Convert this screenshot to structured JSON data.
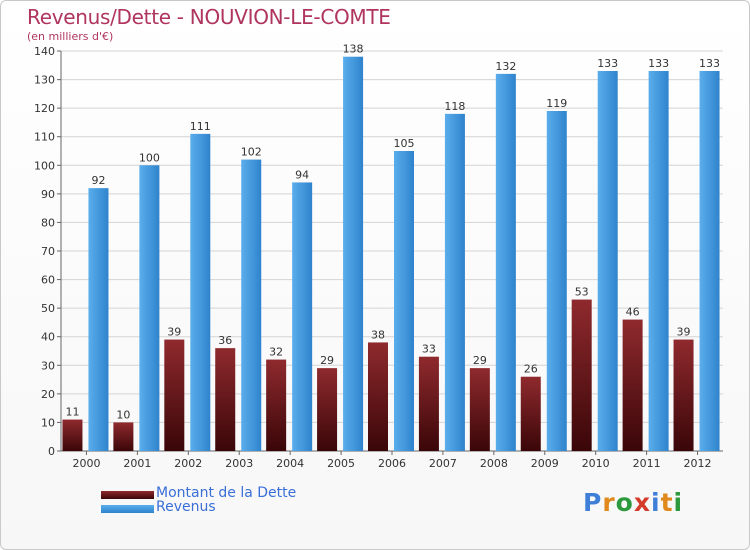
{
  "chart_data": {
    "type": "bar",
    "title": "Revenus/Dette - NOUVION-LE-COMTE",
    "subtitle": "(en milliers d'€)",
    "categories": [
      "2000",
      "2001",
      "2002",
      "2003",
      "2004",
      "2005",
      "2006",
      "2007",
      "2008",
      "2009",
      "2010",
      "2011",
      "2012"
    ],
    "series": [
      {
        "name": "Montant de la Dette",
        "color": "#7a1a1e",
        "values": [
          11,
          10,
          39,
          36,
          32,
          29,
          38,
          33,
          29,
          26,
          53,
          46,
          39
        ]
      },
      {
        "name": "Revenus",
        "color": "#4a9ee0",
        "values": [
          92,
          100,
          111,
          102,
          94,
          138,
          105,
          118,
          132,
          119,
          133,
          133,
          133
        ]
      }
    ],
    "ylim": [
      0,
      140
    ],
    "yticks": [
      0,
      10,
      20,
      30,
      40,
      50,
      60,
      70,
      80,
      90,
      100,
      110,
      120,
      130,
      140
    ],
    "grid": true,
    "legend_position": "bottom-left"
  },
  "logo": {
    "letters": [
      "P",
      "r",
      "o",
      "x",
      "i",
      "t",
      "i"
    ],
    "colors": [
      "#3f7fd8",
      "#e08a1e",
      "#2c9a3c",
      "#d43c2c",
      "#3f7fd8",
      "#e08a1e",
      "#2c9a3c"
    ]
  }
}
